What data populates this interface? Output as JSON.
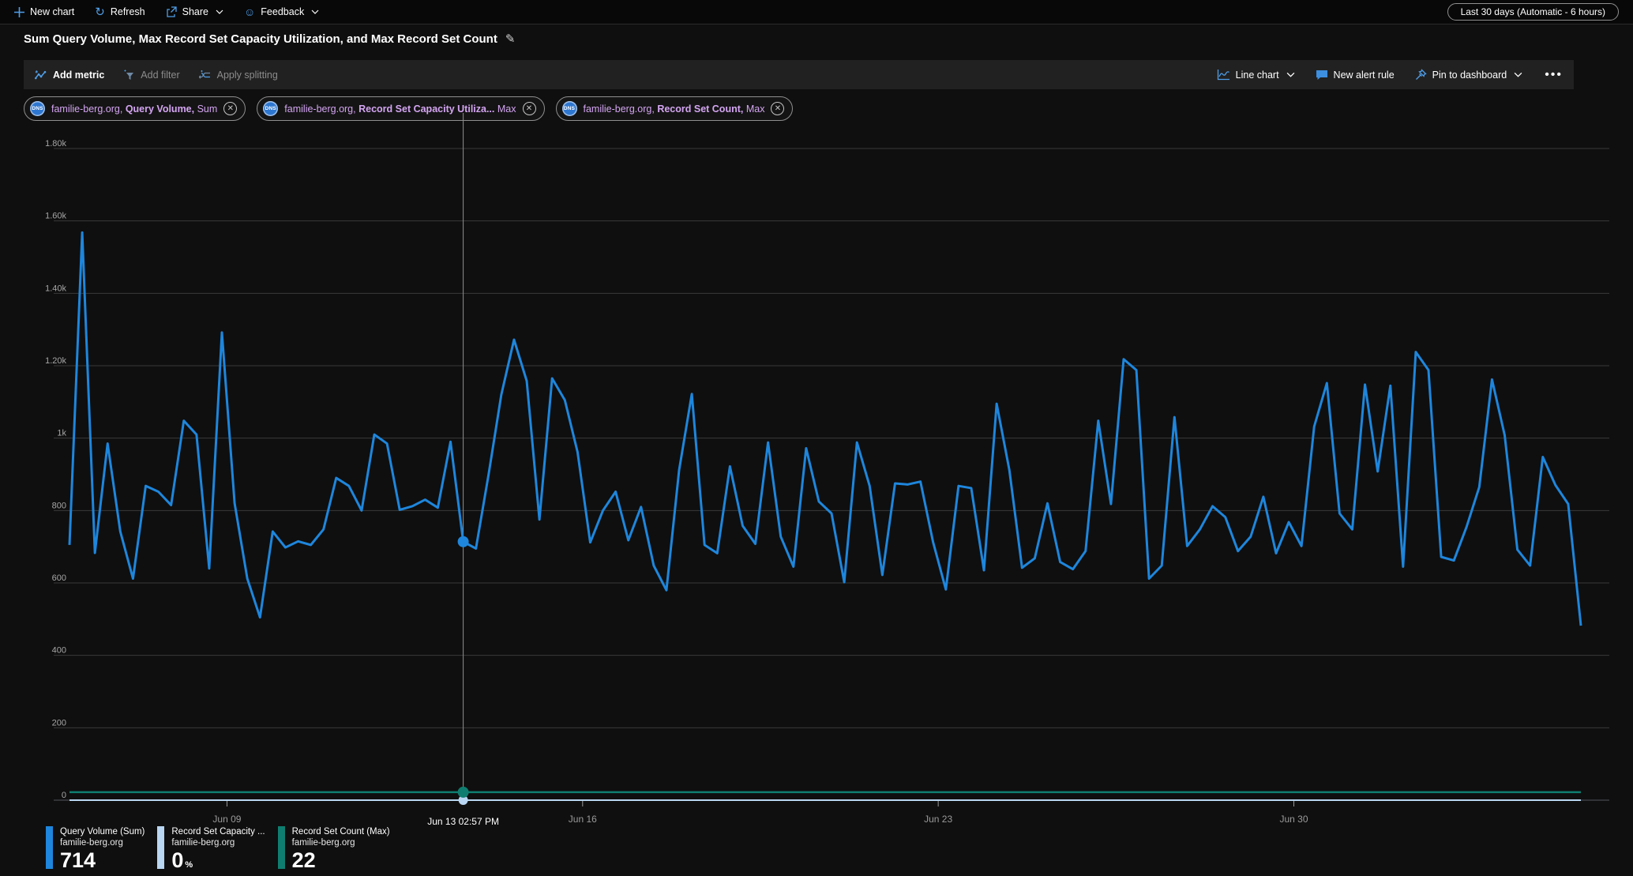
{
  "command_bar": {
    "new_chart": "New chart",
    "refresh": "Refresh",
    "share": "Share",
    "feedback": "Feedback",
    "time_range": "Last 30 days (Automatic - 6 hours)"
  },
  "title": "Sum Query Volume, Max Record Set Capacity Utilization, and Max Record Set Count",
  "toolbar": {
    "add_metric": "Add metric",
    "add_filter": "Add filter",
    "apply_splitting": "Apply splitting",
    "chart_type": "Line chart",
    "new_alert_rule": "New alert rule",
    "pin_to_dashboard": "Pin to dashboard"
  },
  "metric_pills": [
    {
      "resource": "familie-berg.org,",
      "metric": "Query Volume,",
      "aggregation": "Sum"
    },
    {
      "resource": "familie-berg.org,",
      "metric": "Record Set Capacity Utiliza...",
      "aggregation": "Max"
    },
    {
      "resource": "familie-berg.org,",
      "metric": "Record Set Count,",
      "aggregation": "Max"
    }
  ],
  "legend": [
    {
      "name": "Query Volume (Sum)",
      "resource": "familie-berg.org",
      "value": "714",
      "unit": "",
      "color": "#1e86dc"
    },
    {
      "name": "Record Set Capacity ...",
      "resource": "familie-berg.org",
      "value": "0",
      "unit": "%",
      "color": "#b9d6f2"
    },
    {
      "name": "Record Set Count (Max)",
      "resource": "familie-berg.org",
      "value": "22",
      "unit": "",
      "color": "#0f7e70"
    }
  ],
  "chart_data": {
    "type": "line",
    "title": "Sum Query Volume, Max Record Set Capacity Utilization, and Max Record Set Count",
    "time_range": "Last 30 days",
    "granularity": "6 hours",
    "ylim": [
      0,
      1800
    ],
    "grid": "horizontal",
    "legend_position": "bottom-left",
    "y_ticks": [
      {
        "value": 0,
        "label": "0"
      },
      {
        "value": 200,
        "label": "200"
      },
      {
        "value": 400,
        "label": "400"
      },
      {
        "value": 600,
        "label": "600"
      },
      {
        "value": 800,
        "label": "800"
      },
      {
        "value": 1000,
        "label": "1k"
      },
      {
        "value": 1200,
        "label": "1.20k"
      },
      {
        "value": 1400,
        "label": "1.40k"
      },
      {
        "value": 1600,
        "label": "1.60k"
      },
      {
        "value": 1800,
        "label": "1.80k"
      }
    ],
    "x_ticks": [
      {
        "label": "Jun 09",
        "index": 12.4
      },
      {
        "label": "Jun 16",
        "index": 40.4
      },
      {
        "label": "Jun 23",
        "index": 68.4
      },
      {
        "label": "Jun 30",
        "index": 96.4
      }
    ],
    "crosshair": {
      "label": "Jun 13 02:57 PM",
      "index": 31,
      "values": {
        "query_volume": 714,
        "record_set_capacity_utilization": 0,
        "record_set_count": 22
      }
    },
    "series": [
      {
        "name": "Query Volume (Sum)",
        "color": "#1e86dc",
        "values": [
          705,
          1568,
          683,
          985,
          742,
          612,
          868,
          852,
          815,
          1048,
          1010,
          640,
          1292,
          820,
          612,
          505,
          742,
          698,
          715,
          705,
          748,
          890,
          868,
          800,
          1010,
          985,
          802,
          812,
          830,
          808,
          990,
          714,
          695,
          900,
          1120,
          1272,
          1158,
          775,
          1165,
          1105,
          962,
          712,
          800,
          852,
          718,
          810,
          648,
          580,
          912,
          1122,
          705,
          682,
          922,
          758,
          708,
          988,
          728,
          645,
          972,
          825,
          792,
          602,
          988,
          868,
          622,
          875,
          872,
          880,
          712,
          582,
          868,
          862,
          635,
          1095,
          912,
          642,
          668,
          820,
          658,
          638,
          688,
          1048,
          818,
          1218,
          1188,
          612,
          648,
          1058,
          702,
          748,
          812,
          782,
          688,
          728,
          838,
          682,
          768,
          702,
          1032,
          1152,
          792,
          748,
          1148,
          908,
          1145,
          645,
          1238,
          1188,
          672,
          662,
          755,
          865,
          1162,
          1008,
          692,
          648,
          948,
          870,
          818,
          482
        ]
      },
      {
        "name": "Record Set Capacity Utilization (Max)",
        "color": "#b9d6f2",
        "constant": 0
      },
      {
        "name": "Record Set Count (Max)",
        "color": "#0f7e70",
        "constant": 22
      }
    ]
  }
}
